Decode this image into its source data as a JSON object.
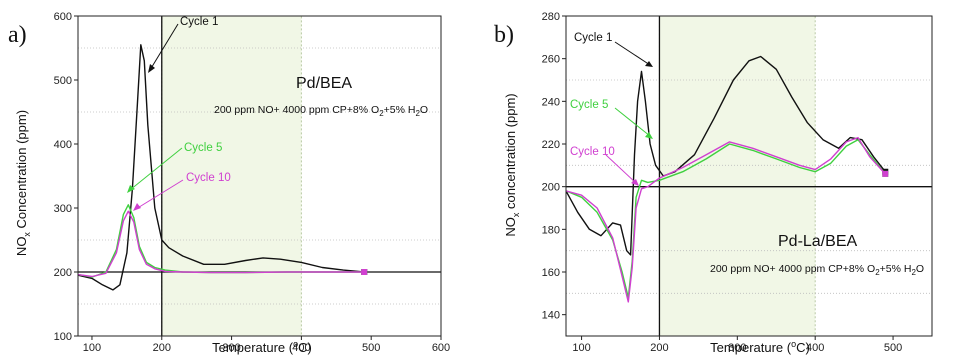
{
  "chart_data": [
    {
      "type": "line",
      "panel_label": "a)",
      "title": "Pd/BEA",
      "subtitle": {
        "main": "200 ppm NO+ 4000 ppm CP+8% O",
        "sub2": "2",
        "mid": "+5% H",
        "sub3": "2",
        "end": "O"
      },
      "xlabel": {
        "main": "Temperature (",
        "sup": "o",
        "end": "C)"
      },
      "ylabel": {
        "main": "NO",
        "sub": "x",
        "end": " Concentration (ppm)"
      },
      "xlim": [
        80,
        600
      ],
      "ylim": [
        100,
        600
      ],
      "xticks": [
        100,
        200,
        300,
        400,
        500,
        600
      ],
      "yticks": [
        100,
        200,
        300,
        400,
        500,
        600
      ],
      "grid_y": [
        150,
        250,
        450,
        550
      ],
      "baseline": 200,
      "shaded_x": [
        200,
        400
      ],
      "vline_x": 200,
      "series": [
        {
          "name": "Cycle 1",
          "color": "#111111",
          "x": [
            80,
            100,
            115,
            130,
            140,
            150,
            158,
            165,
            170,
            175,
            180,
            190,
            200,
            210,
            230,
            260,
            290,
            320,
            345,
            370,
            400,
            430,
            460,
            490
          ],
          "y": [
            195,
            190,
            180,
            172,
            180,
            230,
            330,
            460,
            555,
            530,
            430,
            300,
            250,
            238,
            225,
            212,
            212,
            218,
            222,
            220,
            215,
            207,
            203,
            200
          ]
        },
        {
          "name": "Cycle 5",
          "color": "#3fd03f",
          "x": [
            80,
            100,
            120,
            135,
            145,
            152,
            160,
            168,
            178,
            190,
            205,
            230,
            270,
            320,
            380,
            440,
            490
          ],
          "y": [
            196,
            192,
            200,
            235,
            290,
            305,
            285,
            240,
            215,
            207,
            203,
            200,
            199,
            199,
            200,
            200,
            200
          ]
        },
        {
          "name": "Cycle 10",
          "color": "#d040d0",
          "x": [
            80,
            100,
            120,
            135,
            145,
            152,
            160,
            168,
            178,
            190,
            205,
            230,
            270,
            320,
            380,
            440,
            490
          ],
          "y": [
            196,
            193,
            198,
            230,
            280,
            295,
            278,
            235,
            212,
            205,
            201,
            200,
            199,
            199,
            200,
            200,
            200
          ]
        }
      ],
      "annotations": [
        {
          "text": "Cycle 1",
          "color": "#111111"
        },
        {
          "text": "Cycle 5",
          "color": "#3fd03f"
        },
        {
          "text": "Cycle 10",
          "color": "#d040d0"
        }
      ]
    },
    {
      "type": "line",
      "panel_label": "b)",
      "title": "Pd-La/BEA",
      "subtitle": {
        "main": "200 ppm NO+ 4000 ppm CP+8% O",
        "sub2": "2",
        "mid": "+5% H",
        "sub3": "2",
        "end": "O"
      },
      "xlabel": {
        "main": "Temperature (",
        "sup": "o",
        "end": "C)"
      },
      "ylabel": {
        "main": "NO",
        "sub": "x",
        "end": " concentration (ppm)"
      },
      "xlim": [
        80,
        550
      ],
      "ylim": [
        130,
        280
      ],
      "xticks": [
        100,
        200,
        300,
        400,
        500
      ],
      "yticks": [
        140,
        160,
        180,
        200,
        220,
        240,
        260,
        280
      ],
      "grid_y": [
        150,
        170,
        210,
        250
      ],
      "baseline": 200,
      "shaded_x": [
        200,
        400
      ],
      "vline_x": 200,
      "series": [
        {
          "name": "Cycle 1",
          "color": "#111111",
          "x": [
            80,
            95,
            110,
            125,
            140,
            150,
            158,
            163,
            168,
            172,
            177,
            182,
            188,
            195,
            205,
            220,
            245,
            270,
            295,
            315,
            330,
            350,
            370,
            390,
            410,
            430,
            445,
            460,
            475,
            490
          ],
          "y": [
            198,
            188,
            180,
            177,
            183,
            182,
            170,
            168,
            215,
            240,
            254,
            240,
            220,
            210,
            205,
            207,
            215,
            232,
            250,
            259,
            261,
            255,
            242,
            230,
            222,
            218,
            223,
            222,
            214,
            207
          ]
        },
        {
          "name": "Cycle 5",
          "color": "#3fd03f",
          "x": [
            80,
            100,
            120,
            140,
            152,
            160,
            165,
            170,
            177,
            185,
            200,
            230,
            260,
            290,
            320,
            350,
            380,
            400,
            420,
            440,
            455,
            470,
            490
          ],
          "y": [
            198,
            195,
            188,
            175,
            160,
            148,
            165,
            195,
            203,
            202,
            203,
            207,
            213,
            220,
            217,
            213,
            209,
            207,
            211,
            219,
            222,
            215,
            206
          ]
        },
        {
          "name": "Cycle 10",
          "color": "#d040d0",
          "x": [
            80,
            100,
            120,
            140,
            152,
            160,
            165,
            170,
            177,
            185,
            200,
            230,
            260,
            290,
            320,
            350,
            380,
            400,
            420,
            440,
            455,
            470,
            490
          ],
          "y": [
            198,
            196,
            190,
            176,
            158,
            146,
            162,
            190,
            199,
            200,
            204,
            209,
            215,
            221,
            218,
            214,
            210,
            208,
            213,
            221,
            223,
            214,
            206
          ]
        }
      ],
      "annotations": [
        {
          "text": "Cycle 1",
          "color": "#111111"
        },
        {
          "text": "Cycle 5",
          "color": "#3fd03f"
        },
        {
          "text": "Cycle 10",
          "color": "#d040d0"
        }
      ]
    }
  ]
}
